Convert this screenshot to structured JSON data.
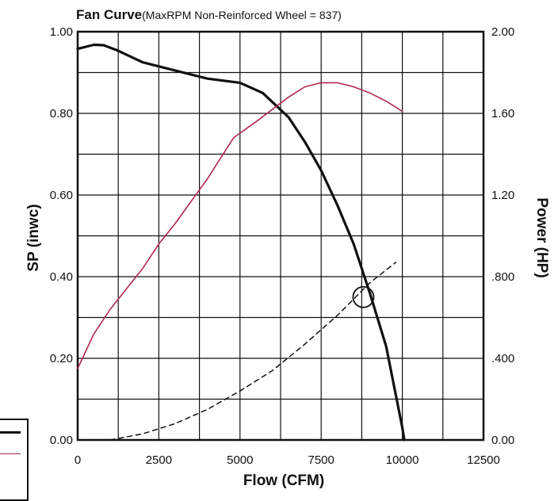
{
  "chart_data": {
    "type": "line",
    "title": "Fan Curve",
    "subtitle": "(MaxRPM Non-Reinforced Wheel = 837)",
    "xlabel": "Flow (CFM)",
    "ylabel_left": "SP (inwc)",
    "ylabel_right": "Power (HP)",
    "xlim": [
      0,
      12500
    ],
    "ylim_left": [
      0,
      1.0
    ],
    "ylim_right": [
      0,
      2.0
    ],
    "x_ticks": [
      "0",
      "2500",
      "5000",
      "7500",
      "10000",
      "12500"
    ],
    "y_left_ticks": [
      "0.00",
      "0.20",
      "0.40",
      "0.60",
      "0.80",
      "1.00"
    ],
    "y_right_ticks": [
      "0.00",
      ".400",
      ".800",
      "1.20",
      "1.60",
      "2.00"
    ],
    "grid": true,
    "series": [
      {
        "name": "",
        "role": "static pressure",
        "axis": "left",
        "color": "#111111",
        "style": "solid-thick",
        "points": [
          [
            0,
            0.958
          ],
          [
            500,
            0.968
          ],
          [
            800,
            0.967
          ],
          [
            1200,
            0.955
          ],
          [
            2000,
            0.925
          ],
          [
            3000,
            0.905
          ],
          [
            4000,
            0.885
          ],
          [
            5000,
            0.875
          ],
          [
            5700,
            0.85
          ],
          [
            6500,
            0.79
          ],
          [
            7000,
            0.73
          ],
          [
            7500,
            0.66
          ],
          [
            8000,
            0.575
          ],
          [
            8500,
            0.48
          ],
          [
            9000,
            0.36
          ],
          [
            9500,
            0.23
          ],
          [
            10000,
            0.03
          ],
          [
            10060,
            0.0
          ]
        ]
      },
      {
        "name": "",
        "role": "power",
        "axis": "right",
        "color": "#b0284a",
        "style": "solid-thin",
        "points": [
          [
            0,
            0.35
          ],
          [
            500,
            0.52
          ],
          [
            1000,
            0.64
          ],
          [
            2000,
            0.84
          ],
          [
            2500,
            0.96
          ],
          [
            3000,
            1.06
          ],
          [
            4000,
            1.28
          ],
          [
            4800,
            1.48
          ],
          [
            5500,
            1.56
          ],
          [
            6000,
            1.62
          ],
          [
            6500,
            1.68
          ],
          [
            7000,
            1.73
          ],
          [
            7500,
            1.75
          ],
          [
            8000,
            1.75
          ],
          [
            8500,
            1.73
          ],
          [
            9000,
            1.7
          ],
          [
            9500,
            1.66
          ],
          [
            10000,
            1.61
          ]
        ]
      },
      {
        "name": "",
        "role": "system curve",
        "axis": "left",
        "color": "#111111",
        "style": "dashed",
        "points": [
          [
            1000,
            0.0
          ],
          [
            2000,
            0.015
          ],
          [
            3000,
            0.04
          ],
          [
            4000,
            0.075
          ],
          [
            5000,
            0.12
          ],
          [
            6000,
            0.17
          ],
          [
            7000,
            0.235
          ],
          [
            8000,
            0.305
          ],
          [
            9000,
            0.385
          ],
          [
            9800,
            0.435
          ]
        ]
      }
    ],
    "operating_point": {
      "x": 8800,
      "y": 0.35
    }
  }
}
